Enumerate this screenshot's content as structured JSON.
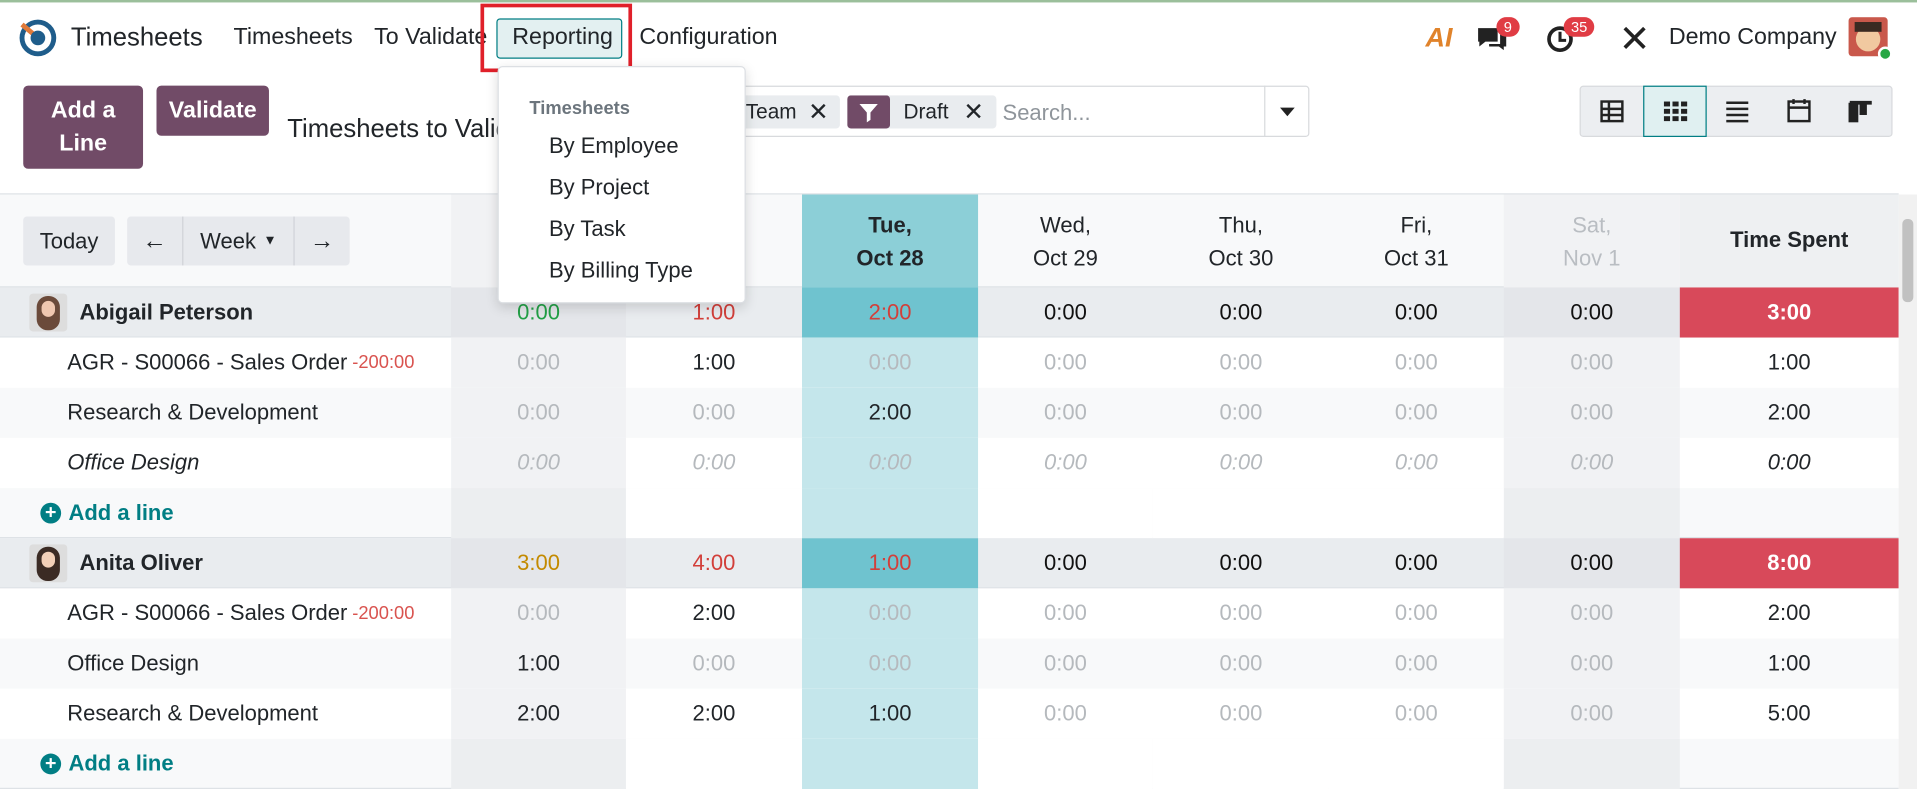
{
  "navbar": {
    "app_name": "Timesheets",
    "menu": [
      "Timesheets",
      "To Validate",
      "Reporting",
      "Configuration"
    ],
    "ai": "AI",
    "messages_badge": "9",
    "activities_badge": "35",
    "company": "Demo Company"
  },
  "control_panel": {
    "buttons": [
      "Add a Line",
      "Validate"
    ],
    "title": "Timesheets to Validate",
    "facets": [
      "Team",
      "Draft"
    ],
    "search_placeholder": "Search..."
  },
  "reporting_menu": {
    "header": "Timesheets",
    "items": [
      "By Employee",
      "By Project",
      "By Task",
      "By Billing Type"
    ]
  },
  "grid": {
    "today": "Today",
    "range": "Week",
    "day_columns": [
      {
        "day": "Tue,",
        "date": "Oct 28"
      },
      {
        "day": "Wed,",
        "date": "Oct 29"
      },
      {
        "day": "Thu,",
        "date": "Oct 30"
      },
      {
        "day": "Fri,",
        "date": "Oct 31"
      },
      {
        "day": "Sat,",
        "date": "Nov 1"
      }
    ],
    "total_header": "Time Spent",
    "add_line": "Add a line",
    "groups": [
      {
        "name": "Abigail Peterson",
        "cells": [
          "0:00",
          "1:00",
          "2:00",
          "0:00",
          "0:00",
          "0:00",
          "0:00"
        ],
        "total": "3:00",
        "rows": [
          {
            "name": "AGR - S00066 - Sales Order",
            "badge": "-200:00",
            "cells": [
              "0:00",
              "1:00",
              "0:00",
              "0:00",
              "0:00",
              "0:00",
              "0:00"
            ],
            "total": "1:00"
          },
          {
            "name": "Research & Development",
            "cells": [
              "0:00",
              "0:00",
              "2:00",
              "0:00",
              "0:00",
              "0:00",
              "0:00"
            ],
            "total": "2:00"
          },
          {
            "name": "Office Design",
            "cells": [
              "0:00",
              "0:00",
              "0:00",
              "0:00",
              "0:00",
              "0:00",
              "0:00"
            ],
            "total": "0:00"
          }
        ]
      },
      {
        "name": "Anita Oliver",
        "cells": [
          "3:00",
          "4:00",
          "1:00",
          "0:00",
          "0:00",
          "0:00",
          "0:00"
        ],
        "total": "8:00",
        "rows": [
          {
            "name": "AGR - S00066 - Sales Order",
            "badge": "-200:00",
            "cells": [
              "0:00",
              "2:00",
              "0:00",
              "0:00",
              "0:00",
              "0:00",
              "0:00"
            ],
            "total": "2:00"
          },
          {
            "name": "Office Design",
            "cells": [
              "1:00",
              "0:00",
              "0:00",
              "0:00",
              "0:00",
              "0:00",
              "0:00"
            ],
            "total": "1:00"
          },
          {
            "name": "Research & Development",
            "cells": [
              "2:00",
              "2:00",
              "1:00",
              "0:00",
              "0:00",
              "0:00",
              "0:00"
            ],
            "total": "5:00"
          }
        ]
      }
    ]
  }
}
